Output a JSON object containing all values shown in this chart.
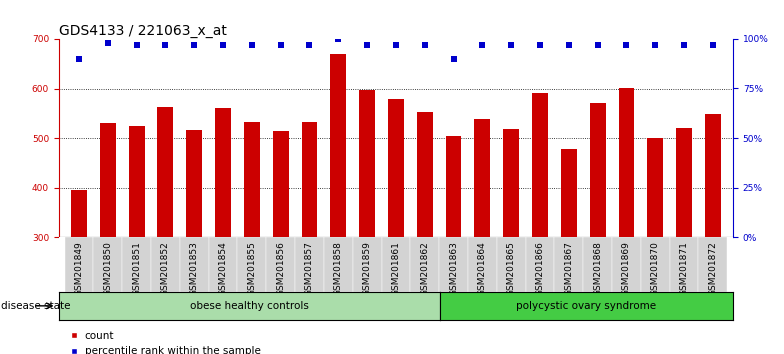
{
  "title": "GDS4133 / 221063_x_at",
  "samples": [
    "GSM201849",
    "GSM201850",
    "GSM201851",
    "GSM201852",
    "GSM201853",
    "GSM201854",
    "GSM201855",
    "GSM201856",
    "GSM201857",
    "GSM201858",
    "GSM201859",
    "GSM201861",
    "GSM201862",
    "GSM201863",
    "GSM201864",
    "GSM201865",
    "GSM201866",
    "GSM201867",
    "GSM201868",
    "GSM201869",
    "GSM201870",
    "GSM201871",
    "GSM201872"
  ],
  "counts": [
    395,
    530,
    525,
    562,
    516,
    560,
    532,
    514,
    532,
    670,
    596,
    578,
    553,
    505,
    538,
    518,
    590,
    478,
    570,
    602,
    500,
    520,
    548
  ],
  "percentiles": [
    90,
    98,
    97,
    97,
    97,
    97,
    97,
    97,
    97,
    100,
    97,
    97,
    97,
    90,
    97,
    97,
    97,
    97,
    97,
    97,
    97,
    97,
    97
  ],
  "bar_color": "#cc0000",
  "dot_color": "#0000cc",
  "ylim_left": [
    300,
    700
  ],
  "ylim_right": [
    0,
    100
  ],
  "yticks_left": [
    300,
    400,
    500,
    600,
    700
  ],
  "yticks_right": [
    0,
    25,
    50,
    75,
    100
  ],
  "group1_label": "obese healthy controls",
  "group1_count": 13,
  "group2_label": "polycystic ovary syndrome",
  "group2_count": 10,
  "group1_color": "#aaddaa",
  "group2_color": "#44cc44",
  "disease_state_label": "disease state",
  "legend_count_label": "count",
  "legend_percentile_label": "percentile rank within the sample",
  "title_fontsize": 10,
  "tick_fontsize": 6.5,
  "label_fontsize": 7.5
}
